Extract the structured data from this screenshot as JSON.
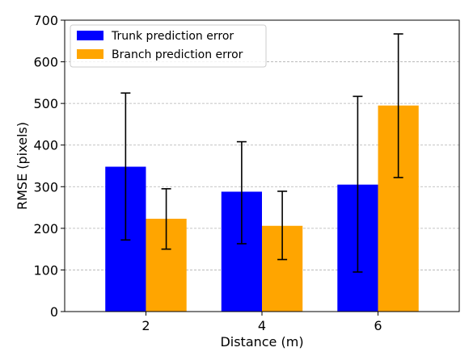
{
  "chart_data": {
    "type": "bar",
    "categories": [
      "2",
      "4",
      "6"
    ],
    "series": [
      {
        "name": "Trunk prediction error",
        "color": "#0000ff",
        "values": [
          348,
          288,
          305
        ],
        "err_low": [
          172,
          163,
          95
        ],
        "err_high": [
          525,
          408,
          517
        ]
      },
      {
        "name": "Branch prediction error",
        "color": "#ffa500",
        "values": [
          223,
          206,
          495
        ],
        "err_low": [
          150,
          125,
          322
        ],
        "err_high": [
          295,
          289,
          667
        ]
      }
    ],
    "xlabel": "Distance (m)",
    "ylabel": "RMSE (pixels)",
    "ylim": [
      0,
      700
    ],
    "yticks": [
      0,
      100,
      200,
      300,
      400,
      500,
      600,
      700
    ],
    "grid": "y-dashed",
    "legend_position": "top-left"
  }
}
